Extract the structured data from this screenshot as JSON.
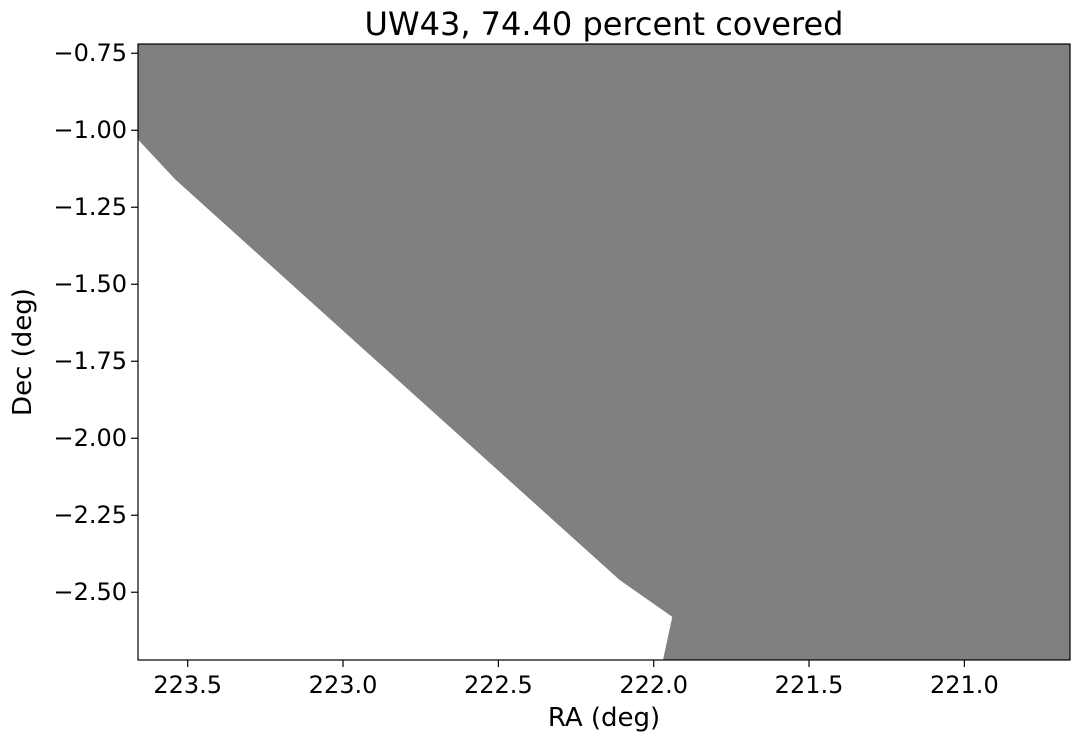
{
  "chart_data": {
    "type": "area",
    "title": "UW43, 74.40 percent covered",
    "xlabel": "RA (deg)",
    "ylabel": "Dec (deg)",
    "xlim": [
      223.66,
      220.66
    ],
    "ylim": [
      -2.72,
      -0.72
    ],
    "x_inverted": true,
    "grid": false,
    "fill_color": "#808080",
    "x_ticks": [
      {
        "value": 223.5,
        "label": "223.5"
      },
      {
        "value": 223.0,
        "label": "223.0"
      },
      {
        "value": 222.5,
        "label": "222.5"
      },
      {
        "value": 222.0,
        "label": "222.0"
      },
      {
        "value": 221.5,
        "label": "221.5"
      },
      {
        "value": 221.0,
        "label": "221.0"
      }
    ],
    "y_ticks": [
      {
        "value": -0.75,
        "label": "−0.75"
      },
      {
        "value": -1.0,
        "label": "−1.00"
      },
      {
        "value": -1.25,
        "label": "−1.25"
      },
      {
        "value": -1.5,
        "label": "−1.50"
      },
      {
        "value": -1.75,
        "label": "−1.75"
      },
      {
        "value": -2.0,
        "label": "−2.00"
      },
      {
        "value": -2.25,
        "label": "−2.25"
      },
      {
        "value": -2.5,
        "label": "−2.50"
      }
    ],
    "covered_region": [
      [
        223.66,
        -0.72
      ],
      [
        220.66,
        -0.72
      ],
      [
        220.66,
        -2.72
      ],
      [
        221.97,
        -2.72
      ],
      [
        221.94,
        -2.58
      ],
      [
        222.11,
        -2.46
      ],
      [
        223.54,
        -1.16
      ],
      [
        223.66,
        -1.03
      ]
    ]
  }
}
